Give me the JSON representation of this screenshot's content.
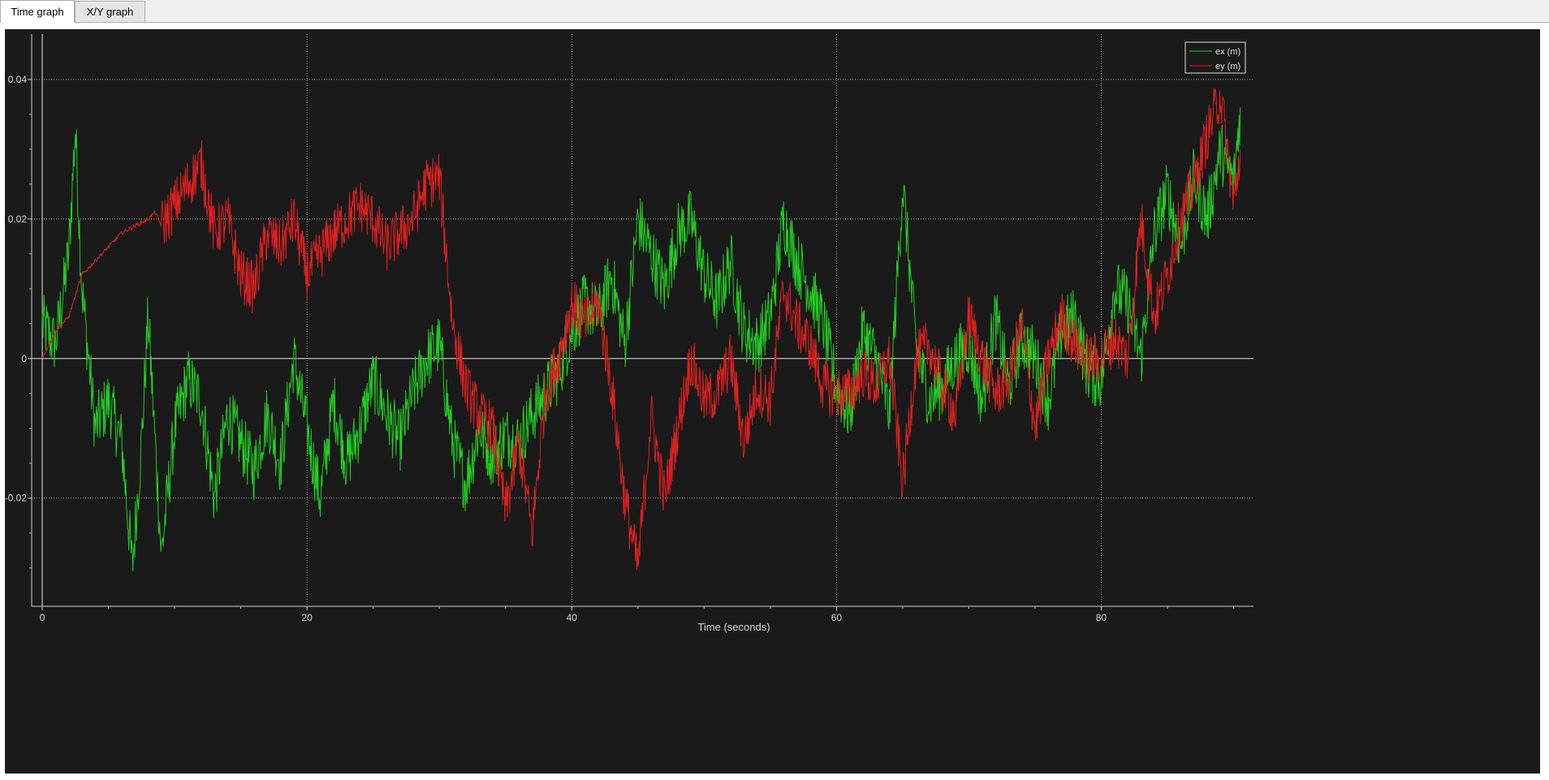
{
  "tabs": [
    {
      "label": "Time graph",
      "active": true
    },
    {
      "label": "X/Y graph",
      "active": false
    }
  ],
  "chart_data": {
    "type": "line",
    "title": "",
    "xlabel": "Time (seconds)",
    "ylabel": "",
    "xlim": [
      -0.8,
      91.5
    ],
    "ylim": [
      -0.0355,
      0.0465
    ],
    "xticks": [
      "0",
      "20",
      "40",
      "60",
      "80"
    ],
    "yticks": [
      "0.04",
      "0.02",
      "0",
      "-0.02"
    ],
    "grid": true,
    "legend_position": "top-right",
    "background": "#1a1a1a",
    "series": [
      {
        "name": "ex (m)",
        "color": "#22cc22",
        "x": [
          0,
          1,
          2,
          2.5,
          3,
          4,
          5,
          6,
          6.8,
          7.5,
          8,
          9,
          10,
          11,
          12,
          13,
          14,
          15,
          16,
          17,
          18,
          19,
          20,
          21,
          22,
          23,
          24,
          25,
          26,
          27,
          28,
          29,
          30,
          31,
          32,
          33,
          34,
          35,
          36,
          37,
          38,
          39,
          40,
          41,
          42,
          43,
          44,
          45,
          46,
          47,
          48,
          49,
          50,
          51,
          52,
          53,
          54,
          55,
          56,
          57,
          58,
          59,
          60,
          61,
          62,
          63,
          64,
          65,
          66,
          67,
          68,
          69,
          70,
          71,
          72,
          73,
          74,
          75,
          76,
          77,
          78,
          79,
          80,
          81,
          82,
          83,
          84,
          85,
          86,
          87,
          88,
          89,
          90,
          90.5
        ],
        "y": [
          0.005,
          0.002,
          0.015,
          0.033,
          0.01,
          -0.01,
          -0.006,
          -0.012,
          -0.03,
          -0.012,
          0.006,
          -0.028,
          -0.01,
          -0.003,
          -0.006,
          -0.02,
          -0.008,
          -0.012,
          -0.016,
          -0.008,
          -0.015,
          0.0,
          -0.01,
          -0.02,
          -0.006,
          -0.015,
          -0.01,
          -0.003,
          -0.008,
          -0.012,
          -0.005,
          0.0,
          0.002,
          -0.012,
          -0.018,
          -0.01,
          -0.014,
          -0.011,
          -0.012,
          -0.008,
          -0.005,
          -0.002,
          0.004,
          0.008,
          0.006,
          0.012,
          0.002,
          0.02,
          0.015,
          0.01,
          0.018,
          0.02,
          0.012,
          0.008,
          0.014,
          0.004,
          0.002,
          0.006,
          0.02,
          0.014,
          0.01,
          0.005,
          -0.004,
          -0.008,
          0.004,
          0.0,
          -0.008,
          0.025,
          0.002,
          -0.006,
          -0.004,
          0.0,
          0.002,
          -0.006,
          0.006,
          -0.004,
          0.003,
          0.0,
          -0.006,
          0.004,
          0.006,
          -0.002,
          -0.003,
          0.01,
          0.008,
          0.0,
          0.018,
          0.024,
          0.016,
          0.026,
          0.02,
          0.03,
          0.025,
          0.036
        ]
      },
      {
        "name": "ey (m)",
        "color": "#dd2020",
        "x": [
          0,
          1,
          2,
          3,
          4,
          5,
          6,
          7,
          8,
          8.5,
          9,
          10,
          11,
          12,
          13,
          14,
          15,
          16,
          17,
          18,
          19,
          20,
          21,
          22,
          23,
          24,
          25,
          26,
          27,
          28,
          29,
          30,
          31,
          32,
          33,
          34,
          35,
          36,
          37,
          38,
          39,
          40,
          41,
          42,
          43,
          44,
          45,
          46,
          47,
          48,
          49,
          50,
          51,
          52,
          53,
          54,
          55,
          56,
          57,
          58,
          59,
          60,
          61,
          62,
          63,
          64,
          65,
          66,
          67,
          68,
          69,
          70,
          71,
          72,
          73,
          74,
          75,
          76,
          77,
          78,
          79,
          80,
          81,
          82,
          83,
          84,
          85,
          86,
          87,
          88,
          89,
          90,
          90.5
        ],
        "y": [
          0.0,
          0.004,
          0.006,
          0.012,
          0.014,
          0.016,
          0.018,
          0.019,
          0.02,
          0.021,
          0.019,
          0.022,
          0.025,
          0.028,
          0.018,
          0.02,
          0.012,
          0.01,
          0.018,
          0.016,
          0.02,
          0.012,
          0.015,
          0.018,
          0.02,
          0.022,
          0.02,
          0.016,
          0.018,
          0.02,
          0.025,
          0.026,
          0.005,
          -0.004,
          -0.008,
          -0.01,
          -0.022,
          -0.012,
          -0.025,
          -0.005,
          0.0,
          0.008,
          0.005,
          0.008,
          -0.004,
          -0.02,
          -0.03,
          -0.008,
          -0.02,
          -0.01,
          0.0,
          -0.006,
          -0.005,
          0.0,
          -0.012,
          -0.004,
          -0.006,
          0.01,
          0.005,
          0.002,
          -0.004,
          -0.005,
          -0.005,
          -0.002,
          -0.004,
          0.0,
          -0.018,
          0.0,
          0.002,
          -0.004,
          -0.008,
          0.006,
          0.0,
          -0.005,
          -0.003,
          0.005,
          -0.01,
          0.0,
          0.006,
          0.002,
          0.0,
          0.0,
          0.003,
          0.0,
          0.02,
          0.006,
          0.012,
          0.02,
          0.025,
          0.032,
          0.038,
          0.022,
          0.03
        ]
      }
    ]
  }
}
